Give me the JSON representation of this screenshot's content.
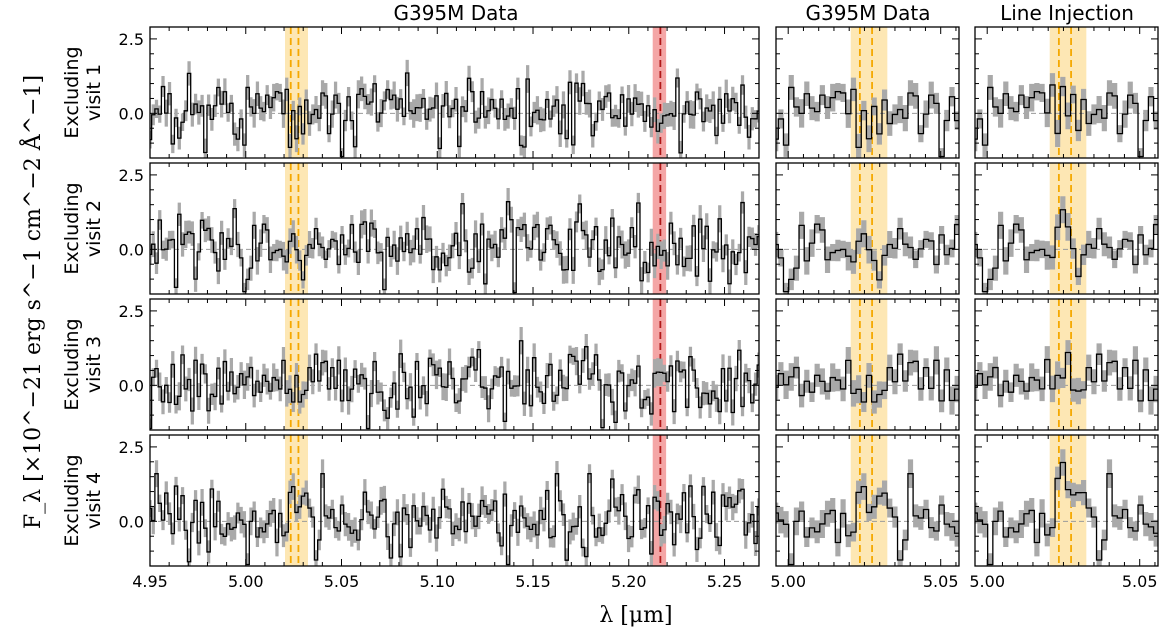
{
  "chart_data": {
    "type": "line",
    "xlabel": "λ [μm]",
    "ylabel": "F_λ [×10^−21 erg s^−1 cm^−2 Å^−1]",
    "ylim": [
      -1.5,
      2.9
    ],
    "yticks": [
      0.0,
      2.5
    ],
    "ytick_labels": [
      "0.0",
      "2.5"
    ],
    "columns": [
      {
        "title": "G395M Data",
        "xlim": [
          4.95,
          5.268
        ],
        "xticks": [
          4.95,
          5.0,
          5.05,
          5.1,
          5.15,
          5.2,
          5.25
        ],
        "xtick_labels": [
          "4.95",
          "5.00",
          "5.05",
          "5.10",
          "5.15",
          "5.20",
          "5.25"
        ]
      },
      {
        "title": "G395M Data",
        "xlim": [
          4.996,
          5.056
        ],
        "xticks": [
          5.0,
          5.05
        ],
        "xtick_labels": [
          "5.00",
          "5.05"
        ]
      },
      {
        "title": "Line Injection",
        "xlim": [
          4.996,
          5.056
        ],
        "xticks": [
          5.0,
          5.05
        ],
        "xtick_labels": [
          "5.00",
          "5.05"
        ]
      }
    ],
    "rows": [
      {
        "label_line1": "Excluding",
        "label_line2": "visit 1"
      },
      {
        "label_line1": "Excluding",
        "label_line2": "visit 2"
      },
      {
        "label_line1": "Excluding",
        "label_line2": "visit 3"
      },
      {
        "label_line1": "Excluding",
        "label_line2": "visit 4"
      }
    ],
    "highlight_bands": [
      {
        "color": "orange",
        "x0": 5.0205,
        "x1": 5.0325,
        "lines": [
          5.0235,
          5.0275
        ]
      },
      {
        "color": "red",
        "x0": 5.2125,
        "x1": 5.2195,
        "lines": [
          5.2165
        ]
      }
    ],
    "series_note": "black step line = flux, grey band = 1-sigma uncertainty",
    "spectrum_sample_x_step": 0.0017,
    "spectrum_seeds": [
      11,
      23,
      37,
      41
    ],
    "injected_line": {
      "center": 5.0255,
      "amplitude": 0.85,
      "sigma": 0.0022
    }
  },
  "colors": {
    "step": "#000000",
    "error_band": "#a9a9a9",
    "orange_band": "#fde7b4",
    "orange_line": "#f5a800",
    "red_band": "#f4a6a6",
    "red_line": "#b01818",
    "zero_line": "#9a9a9a"
  }
}
